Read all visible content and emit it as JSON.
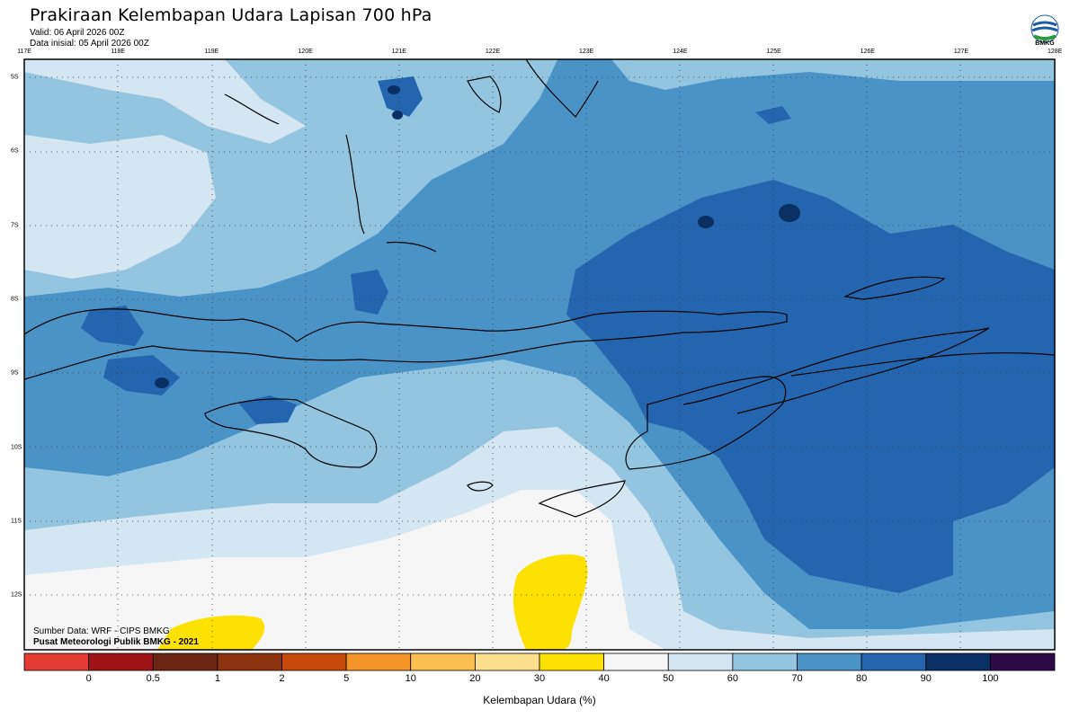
{
  "title": "Prakiraan Kelembapan Udara Lapisan 700 hPa",
  "valid": "Valid: 06 April 2026 00Z",
  "init": "Data inisial: 05 April 2026 00Z",
  "logo": {
    "icon": "bmkg-logo-icon",
    "text": "BMKG"
  },
  "credits": {
    "source": "Sumber Data: WRF - CIPS BMKG",
    "org": "Pusat Meteorologi Publik BMKG - 2021"
  },
  "lon_labels": [
    "117E",
    "118E",
    "119E",
    "120E",
    "121E",
    "122E",
    "123E",
    "124E",
    "125E",
    "126E",
    "127E",
    "128E"
  ],
  "lat_labels": [
    "5S",
    "6S",
    "7S",
    "8S",
    "9S",
    "10S",
    "11S",
    "12S"
  ],
  "colorbar": {
    "title": "Kelembapan Udara (%)",
    "labels": [
      "0",
      "0.5",
      "1",
      "2",
      "5",
      "10",
      "20",
      "30",
      "40",
      "50",
      "60",
      "70",
      "80",
      "90",
      "100"
    ],
    "colors": [
      "#e43b32",
      "#a01417",
      "#6b2512",
      "#8e3310",
      "#c64a0c",
      "#f39528",
      "#fbbf52",
      "#fde08e",
      "#fde103",
      "#f6f6f6",
      "#d4e6f1",
      "#94c5e0",
      "#4a93c7",
      "#2465af",
      "#0a2f63",
      "#2e0a47"
    ]
  },
  "map_colors": {
    "c30": "#fde103",
    "c40": "#f6f6f6",
    "c50": "#d4e6f1",
    "c60": "#94c5e0",
    "c70": "#4a93c7",
    "c80": "#2465af",
    "c90": "#0a2f63"
  }
}
